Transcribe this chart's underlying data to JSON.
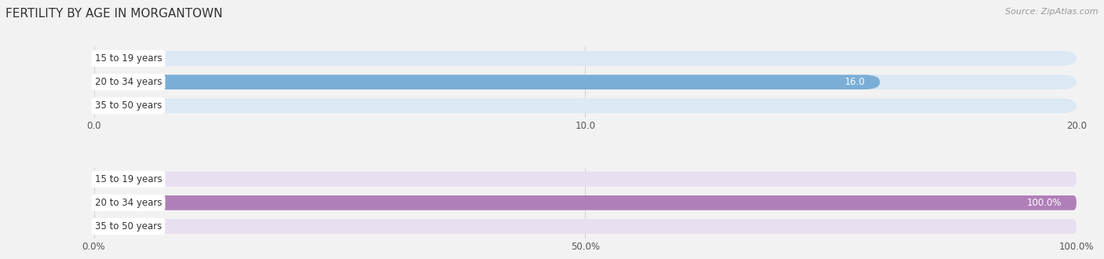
{
  "title": "FERTILITY BY AGE IN MORGANTOWN",
  "source": "Source: ZipAtlas.com",
  "top_chart": {
    "categories": [
      "15 to 19 years",
      "20 to 34 years",
      "35 to 50 years"
    ],
    "values": [
      0.0,
      16.0,
      0.0
    ],
    "xlim": [
      0,
      20
    ],
    "xticks": [
      0.0,
      10.0,
      20.0
    ],
    "bar_color": "#7aaed6",
    "bar_bg_color": "#dce8f4",
    "label_color_inside": "#ffffff",
    "label_color_outside": "#555555",
    "value_threshold": 14
  },
  "bottom_chart": {
    "categories": [
      "15 to 19 years",
      "20 to 34 years",
      "35 to 50 years"
    ],
    "values": [
      0.0,
      100.0,
      0.0
    ],
    "xlim": [
      0,
      100
    ],
    "xticks": [
      0.0,
      50.0,
      100.0
    ],
    "xtick_labels": [
      "0.0%",
      "50.0%",
      "100.0%"
    ],
    "bar_color": "#b07fb8",
    "bar_bg_color": "#e8dff0",
    "label_color_inside": "#ffffff",
    "label_color_outside": "#555555",
    "value_threshold": 85
  },
  "bg_color": "#f2f2f2",
  "label_fontsize": 8.5,
  "tick_fontsize": 8.5,
  "title_fontsize": 11,
  "source_fontsize": 8,
  "bar_height": 0.62,
  "category_label_color": "#333333",
  "grid_color": "#cccccc",
  "white_label_bg": "#ffffff"
}
